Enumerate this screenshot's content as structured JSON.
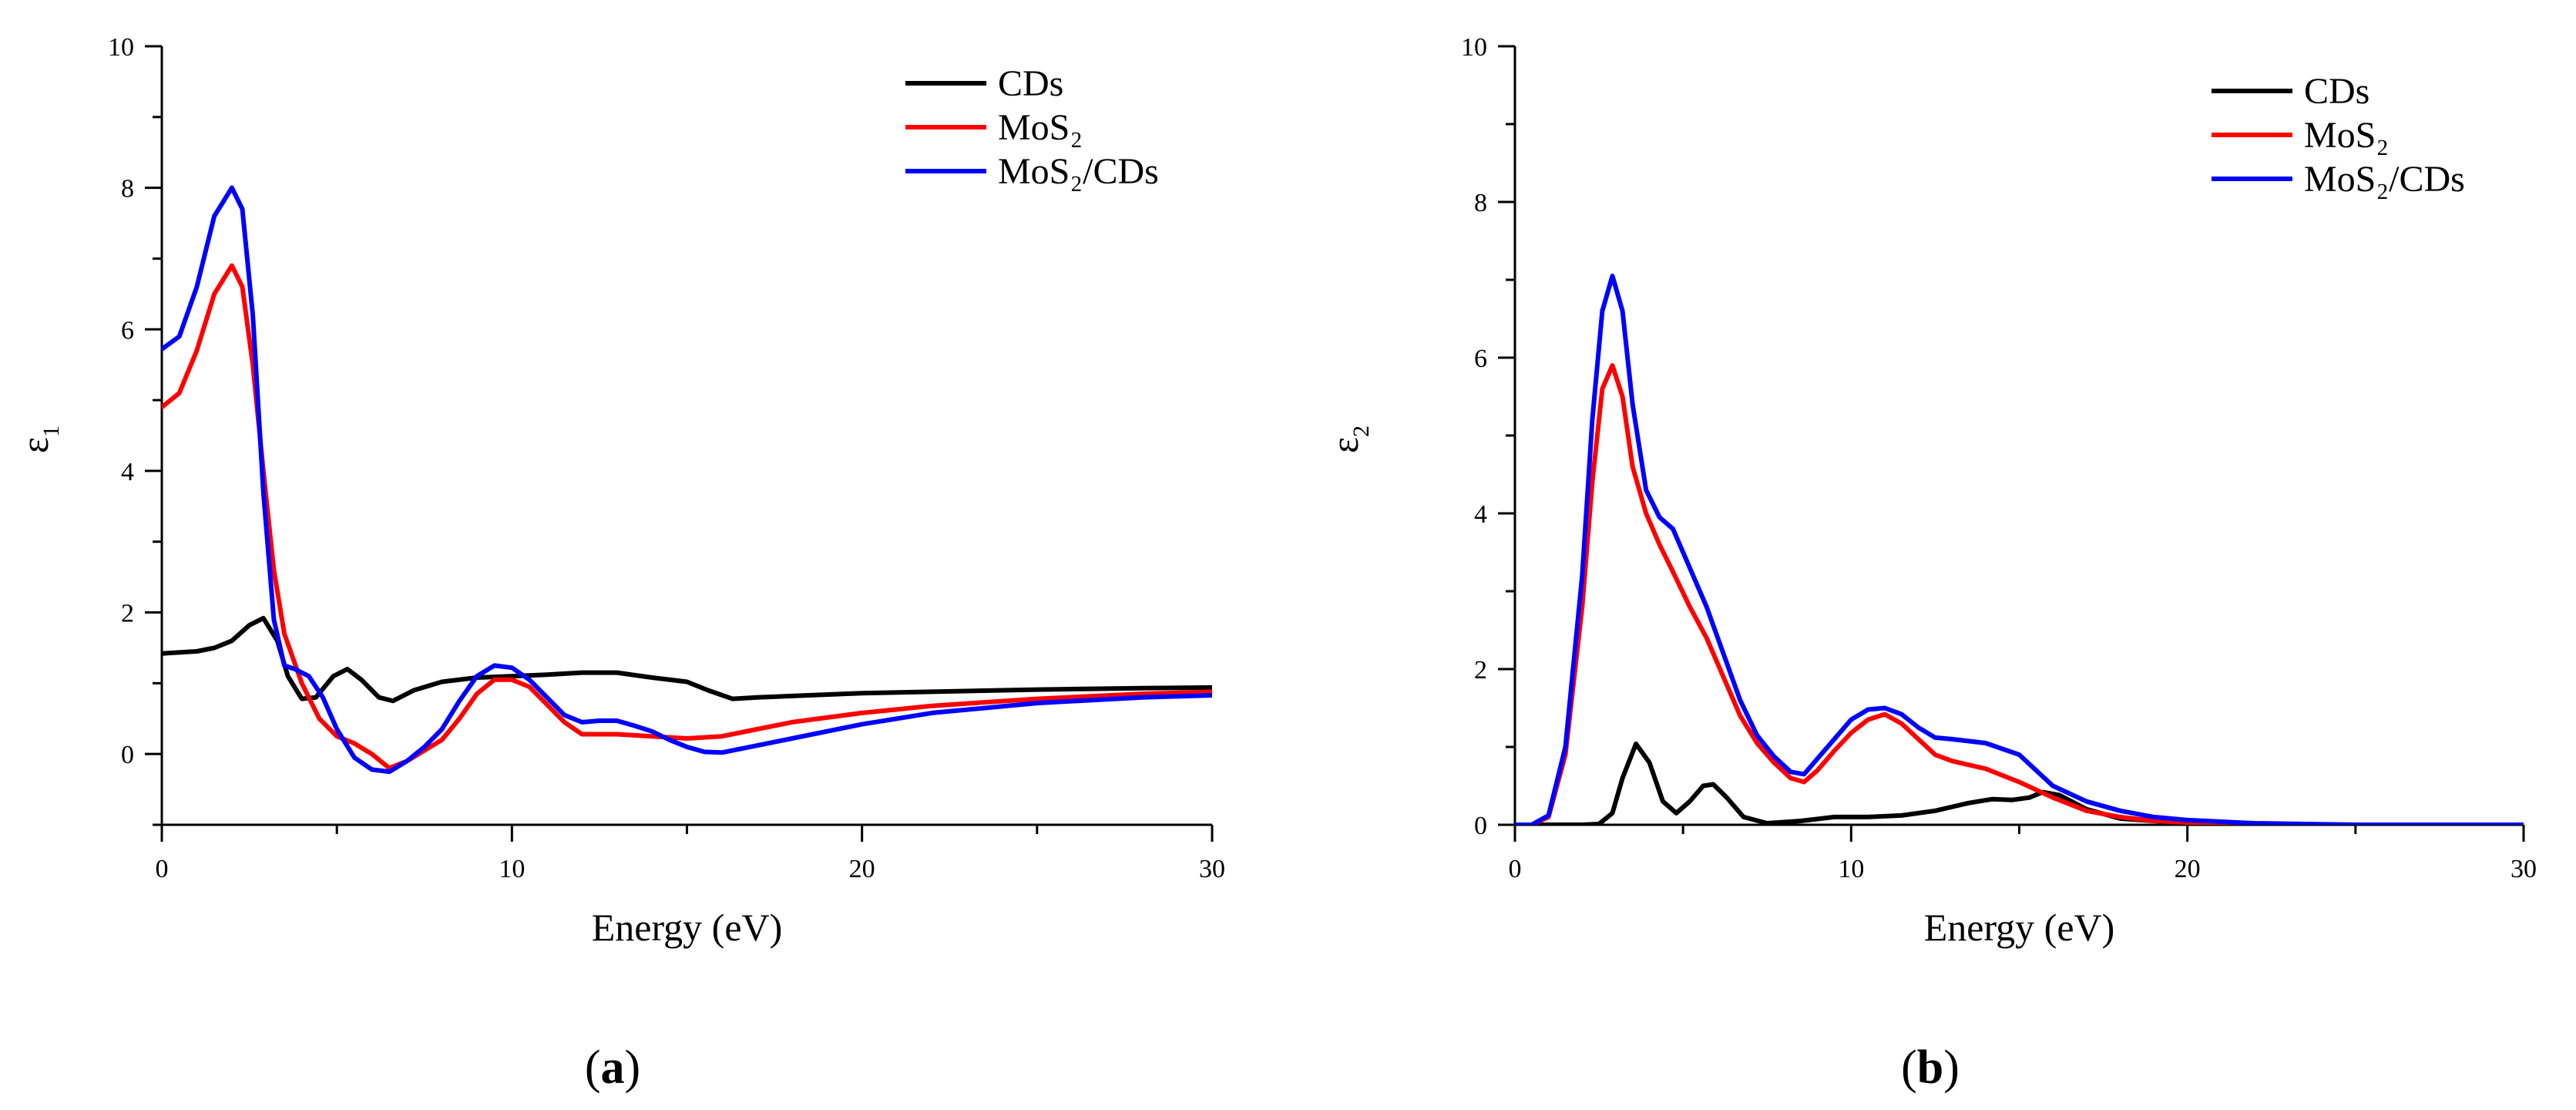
{
  "chart_data": [
    {
      "type": "line",
      "panel_label": {
        "open": "(",
        "letter": "a",
        "close": ")"
      },
      "xlabel": "Energy (eV)",
      "ylabel": {
        "main": "ε",
        "sub": "1"
      },
      "xlim": [
        0,
        30
      ],
      "ylim": [
        -1,
        10
      ],
      "x_ticks": [
        0,
        10,
        20,
        30
      ],
      "y_ticks": [
        0,
        2,
        4,
        6,
        8,
        10
      ],
      "legend_position": "top-right",
      "series": [
        {
          "name": "CDs",
          "color": "#000000",
          "x": [
            0,
            1,
            1.5,
            2,
            2.5,
            2.9,
            3.3,
            3.6,
            4,
            4.4,
            4.9,
            5.3,
            5.7,
            6.2,
            6.6,
            7.2,
            8,
            9,
            10,
            11,
            12,
            13,
            14,
            15,
            15.6,
            16.3,
            17,
            18,
            20,
            22,
            25,
            28,
            30
          ],
          "y": [
            1.42,
            1.45,
            1.5,
            1.6,
            1.82,
            1.92,
            1.6,
            1.1,
            0.78,
            0.8,
            1.1,
            1.2,
            1.05,
            0.8,
            0.75,
            0.9,
            1.02,
            1.08,
            1.1,
            1.12,
            1.15,
            1.15,
            1.08,
            1.02,
            0.9,
            0.78,
            0.8,
            0.82,
            0.86,
            0.88,
            0.91,
            0.93,
            0.94
          ]
        },
        {
          "name": "MoS₂",
          "color": "#ff0000",
          "x": [
            0,
            0.5,
            1,
            1.5,
            2,
            2.3,
            2.6,
            2.9,
            3.2,
            3.5,
            4,
            4.5,
            5,
            5.5,
            6,
            6.5,
            7,
            7.5,
            8,
            8.5,
            9,
            9.5,
            10,
            10.5,
            11,
            11.5,
            12,
            13,
            14,
            15,
            16,
            17,
            18,
            20,
            22,
            25,
            28,
            30
          ],
          "y": [
            4.9,
            5.1,
            5.7,
            6.5,
            6.9,
            6.6,
            5.5,
            4.0,
            2.6,
            1.7,
            1.0,
            0.5,
            0.25,
            0.15,
            0.0,
            -0.2,
            -0.1,
            0.05,
            0.2,
            0.5,
            0.85,
            1.05,
            1.05,
            0.95,
            0.7,
            0.45,
            0.28,
            0.28,
            0.25,
            0.22,
            0.25,
            0.35,
            0.45,
            0.58,
            0.68,
            0.78,
            0.85,
            0.88
          ]
        },
        {
          "name": "MoS₂/CDs",
          "color": "#0000ff",
          "x": [
            0,
            0.5,
            1,
            1.5,
            2,
            2.3,
            2.6,
            2.9,
            3.2,
            3.5,
            3.8,
            4.2,
            4.6,
            5,
            5.5,
            6,
            6.5,
            7,
            7.5,
            8,
            8.5,
            9,
            9.5,
            10,
            10.5,
            11,
            11.5,
            12,
            12.5,
            13,
            13.5,
            14,
            14.5,
            15,
            15.5,
            16,
            17,
            18,
            20,
            22,
            25,
            28,
            30
          ],
          "y": [
            5.72,
            5.9,
            6.6,
            7.6,
            8.0,
            7.7,
            6.2,
            3.7,
            1.9,
            1.25,
            1.2,
            1.1,
            0.8,
            0.35,
            -0.05,
            -0.22,
            -0.25,
            -0.1,
            0.1,
            0.35,
            0.75,
            1.1,
            1.25,
            1.22,
            1.05,
            0.8,
            0.55,
            0.45,
            0.47,
            0.47,
            0.4,
            0.32,
            0.2,
            0.1,
            0.03,
            0.02,
            0.12,
            0.22,
            0.42,
            0.58,
            0.72,
            0.8,
            0.83
          ]
        }
      ]
    },
    {
      "type": "line",
      "panel_label": {
        "open": "(",
        "letter": "b",
        "close": ")"
      },
      "xlabel": "Energy (eV)",
      "ylabel": {
        "main": "ε",
        "sub": "2"
      },
      "xlim": [
        0,
        30
      ],
      "ylim": [
        0,
        10
      ],
      "x_ticks": [
        0,
        10,
        20,
        30
      ],
      "y_ticks": [
        0,
        2,
        4,
        6,
        8,
        10
      ],
      "legend_position": "top-right",
      "series": [
        {
          "name": "CDs",
          "color": "#000000",
          "x": [
            0,
            1,
            2,
            2.5,
            2.9,
            3.2,
            3.6,
            4,
            4.4,
            4.8,
            5.2,
            5.6,
            5.9,
            6.3,
            6.8,
            7.5,
            8.5,
            9.5,
            10.5,
            11.5,
            12.5,
            13.5,
            14.2,
            14.8,
            15.3,
            15.7,
            16.2,
            17,
            18,
            20,
            22,
            25,
            30
          ],
          "y": [
            0,
            0,
            0,
            0.01,
            0.15,
            0.6,
            1.04,
            0.8,
            0.3,
            0.15,
            0.3,
            0.5,
            0.52,
            0.35,
            0.1,
            0.02,
            0.05,
            0.1,
            0.1,
            0.12,
            0.18,
            0.28,
            0.33,
            0.32,
            0.35,
            0.42,
            0.38,
            0.2,
            0.08,
            0.02,
            0.005,
            0,
            0
          ]
        },
        {
          "name": "MoS₂",
          "color": "#ff0000",
          "x": [
            0,
            0.5,
            1,
            1.5,
            2,
            2.3,
            2.6,
            2.9,
            3.2,
            3.5,
            3.9,
            4.3,
            4.7,
            5.2,
            5.7,
            6.2,
            6.7,
            7.2,
            7.7,
            8.2,
            8.6,
            9,
            9.5,
            10,
            10.5,
            11,
            11.5,
            12,
            12.5,
            13,
            14,
            15,
            16,
            17,
            18,
            19,
            20,
            22,
            25,
            30
          ],
          "y": [
            0,
            0,
            0.1,
            0.9,
            2.8,
            4.4,
            5.6,
            5.9,
            5.5,
            4.6,
            4.0,
            3.6,
            3.25,
            2.8,
            2.4,
            1.9,
            1.4,
            1.05,
            0.8,
            0.6,
            0.55,
            0.7,
            0.95,
            1.18,
            1.35,
            1.42,
            1.3,
            1.1,
            0.9,
            0.82,
            0.72,
            0.55,
            0.35,
            0.18,
            0.1,
            0.05,
            0.03,
            0.01,
            0,
            0
          ]
        },
        {
          "name": "MoS₂/CDs",
          "color": "#0000ff",
          "x": [
            0,
            0.5,
            1,
            1.5,
            2,
            2.3,
            2.6,
            2.9,
            3.2,
            3.5,
            3.9,
            4.3,
            4.7,
            5.2,
            5.7,
            6.2,
            6.7,
            7.2,
            7.7,
            8.2,
            8.6,
            9,
            9.5,
            10,
            10.5,
            11,
            11.5,
            12,
            12.5,
            13,
            14,
            15,
            15.5,
            16,
            17,
            18,
            19,
            20,
            22,
            25,
            30
          ],
          "y": [
            0,
            0,
            0.12,
            1.0,
            3.2,
            5.2,
            6.6,
            7.05,
            6.6,
            5.4,
            4.3,
            3.95,
            3.8,
            3.3,
            2.8,
            2.2,
            1.6,
            1.15,
            0.88,
            0.68,
            0.65,
            0.85,
            1.1,
            1.35,
            1.48,
            1.5,
            1.42,
            1.25,
            1.12,
            1.1,
            1.05,
            0.9,
            0.7,
            0.5,
            0.3,
            0.18,
            0.1,
            0.06,
            0.02,
            0,
            0
          ]
        }
      ]
    }
  ]
}
